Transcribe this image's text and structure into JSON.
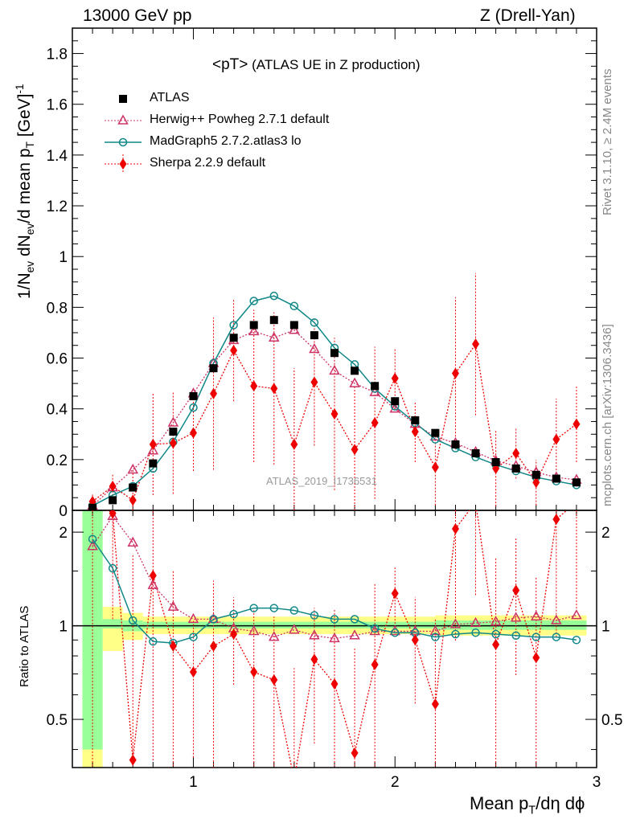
{
  "header": {
    "left": "13000 GeV pp",
    "right": "Z (Drell-Yan)"
  },
  "side_labels": {
    "rivet": "Rivet 3.1.10, ≥ 2.4M events",
    "mcplots": "mcplots.cern.ch [arXiv:1306.3436]"
  },
  "analysis_id": "ATLAS_2019_I1736531",
  "axes": {
    "ylabel_main": {
      "a": "1/N",
      "b": "ev",
      "c": " dN",
      "d": "ev",
      "e": "/d mean p",
      "f": "T",
      "g": " [GeV]",
      "h": "-1"
    },
    "ylabel_ratio": "Ratio to ATLAS",
    "xlabel": {
      "a": "Mean p",
      "b": "T",
      "c": "/dη dϕ"
    }
  },
  "legend": {
    "title_main": "<pT>",
    "title_rest": " (ATLAS UE in Z production)",
    "entries": [
      "ATLAS",
      "Herwig++ Powheg 2.7.1 default",
      "MadGraph5 2.7.2.atlas3 lo",
      "Sherpa 2.2.9 default"
    ]
  },
  "colors": {
    "atlas": "#000000",
    "herwig": "#cc3366",
    "madgraph": "#118888",
    "sherpa": "#ee0000",
    "band_inner": "#99ff99",
    "band_outer": "#ffff88"
  },
  "chart_data": {
    "type": "scatter",
    "title": "<pT> (ATLAS UE in Z production)",
    "xlabel": "Mean pT/dη dϕ",
    "ylabel": "1/Nev dNev/d mean pT [GeV]^-1",
    "xlim": [
      0.4,
      3.0
    ],
    "ylim": [
      0,
      1.9
    ],
    "xticks": [
      1,
      2,
      3
    ],
    "yticks": [
      0,
      0.2,
      0.4,
      0.6,
      0.8,
      1,
      1.2,
      1.4,
      1.6,
      1.8
    ],
    "ratio_ylim": [
      0.35,
      2.35
    ],
    "ratio_yticks": [
      0.5,
      1,
      2
    ],
    "x": [
      0.5,
      0.6,
      0.7,
      0.8,
      0.9,
      1.0,
      1.1,
      1.2,
      1.3,
      1.4,
      1.5,
      1.6,
      1.7,
      1.8,
      1.9,
      2.0,
      2.1,
      2.2,
      2.3,
      2.4,
      2.5,
      2.6,
      2.7,
      2.8,
      2.9
    ],
    "series": [
      {
        "name": "ATLAS",
        "values": [
          0.01,
          0.04,
          0.09,
          0.185,
          0.31,
          0.45,
          0.56,
          0.68,
          0.73,
          0.75,
          0.73,
          0.69,
          0.62,
          0.55,
          0.49,
          0.43,
          0.355,
          0.305,
          0.26,
          0.225,
          0.19,
          0.165,
          0.14,
          0.125,
          0.11
        ]
      },
      {
        "name": "Herwig++ Powheg 2.7.1 default",
        "values": [
          0.018,
          0.09,
          0.16,
          0.235,
          0.345,
          0.46,
          0.58,
          0.67,
          0.705,
          0.68,
          0.71,
          0.635,
          0.55,
          0.5,
          0.465,
          0.4,
          0.34,
          0.29,
          0.265,
          0.23,
          0.195,
          0.175,
          0.15,
          0.13,
          0.12
        ]
      },
      {
        "name": "MadGraph5 2.7.2.atlas3 lo",
        "values": [
          0.018,
          0.06,
          0.095,
          0.165,
          0.27,
          0.405,
          0.58,
          0.73,
          0.825,
          0.845,
          0.805,
          0.74,
          0.64,
          0.575,
          0.48,
          0.41,
          0.345,
          0.28,
          0.245,
          0.21,
          0.18,
          0.155,
          0.13,
          0.115,
          0.1
        ]
      },
      {
        "name": "Sherpa 2.2.9 default",
        "values": [
          0.035,
          0.095,
          0.04,
          0.26,
          0.265,
          0.305,
          0.46,
          0.63,
          0.49,
          0.48,
          0.26,
          0.505,
          0.38,
          0.24,
          0.345,
          0.52,
          0.31,
          0.17,
          0.54,
          0.655,
          0.165,
          0.225,
          0.11,
          0.28,
          0.34
        ],
        "errors": [
          0.03,
          0.05,
          0.12,
          0.2,
          0.2,
          0.15,
          0.3,
          0.2,
          0.3,
          0.3,
          0.3,
          0.25,
          0.3,
          0.25,
          0.3,
          0.12,
          0.12,
          0.15,
          0.3,
          0.28,
          0.15,
          0.1,
          0.09,
          0.16,
          0.15
        ]
      }
    ],
    "ratio": {
      "Herwig++ Powheg 2.7.1 default": [
        1.8,
        2.25,
        1.85,
        1.35,
        1.15,
        1.05,
        1.05,
        0.98,
        0.96,
        0.92,
        0.97,
        0.93,
        0.91,
        0.93,
        0.96,
        0.96,
        0.96,
        0.96,
        1.01,
        1.02,
        1.03,
        1.06,
        1.07,
        1.04,
        1.08
      ],
      "MadGraph5 2.7.2.atlas3 lo": [
        1.9,
        1.53,
        1.04,
        0.89,
        0.88,
        0.92,
        1.05,
        1.09,
        1.14,
        1.14,
        1.12,
        1.08,
        1.05,
        1.05,
        0.98,
        0.95,
        0.95,
        0.92,
        0.94,
        0.95,
        0.94,
        0.93,
        0.92,
        0.92,
        0.9
      ],
      "Sherpa 2.2.9 default": [
        2.5,
        2.3,
        0.37,
        1.45,
        0.86,
        0.71,
        0.86,
        0.94,
        0.71,
        0.67,
        0.32,
        0.78,
        0.65,
        0.39,
        0.75,
        1.27,
        0.9,
        0.56,
        2.05,
        2.5,
        0.87,
        1.3,
        0.79,
        2.2,
        2.5
      ]
    },
    "ratio_band_inner": [
      [
        0.45,
        0.55,
        0.4,
        2.5
      ],
      [
        0.55,
        0.65,
        0.98,
        1.05
      ],
      [
        0.65,
        0.75,
        0.96,
        1.04
      ],
      [
        0.75,
        2.2,
        0.98,
        1.03
      ],
      [
        2.2,
        2.95,
        0.97,
        1.04
      ]
    ],
    "ratio_band_outer": [
      [
        0.45,
        0.55,
        0.35,
        2.5
      ],
      [
        0.55,
        0.65,
        0.83,
        1.15
      ],
      [
        0.65,
        0.75,
        0.9,
        1.1
      ],
      [
        0.75,
        2.2,
        0.94,
        1.07
      ],
      [
        2.2,
        2.95,
        0.93,
        1.08
      ]
    ]
  }
}
